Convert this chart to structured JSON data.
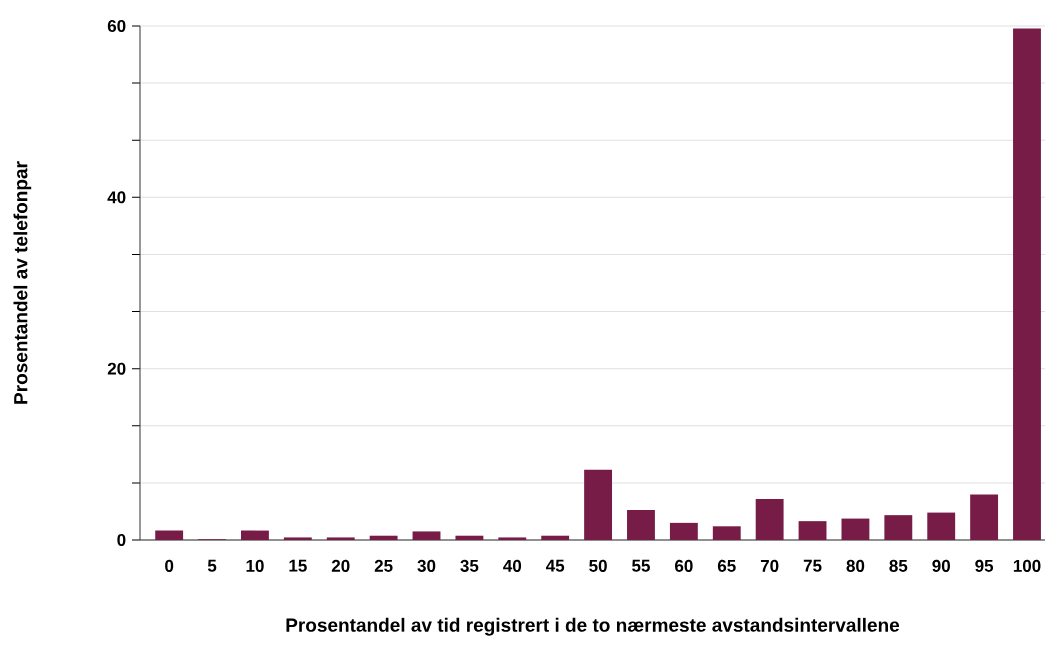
{
  "chart_data": {
    "type": "bar",
    "xlabel": "Prosentandel av tid registrert i de to nærmeste avstandsintervallene",
    "ylabel": "Prosentandel av telefonpar",
    "categories": [
      "0",
      "5",
      "10",
      "15",
      "20",
      "25",
      "30",
      "35",
      "40",
      "45",
      "50",
      "55",
      "60",
      "65",
      "70",
      "75",
      "80",
      "85",
      "90",
      "95",
      "100"
    ],
    "values": [
      1.1,
      0.1,
      1.1,
      0.3,
      0.3,
      0.5,
      1.0,
      0.5,
      0.3,
      0.5,
      8.2,
      3.5,
      2.0,
      1.6,
      4.8,
      2.2,
      2.5,
      2.9,
      3.2,
      5.3,
      59.7
    ],
    "color": "#761c47",
    "ylim": [
      0,
      60
    ],
    "yticks": [
      0,
      {
        "value": 6.667,
        "label": null
      },
      {
        "value": 13.333,
        "label": null
      },
      20,
      {
        "value": 26.667,
        "label": null
      },
      {
        "value": 33.333,
        "label": null
      },
      40,
      {
        "value": 46.667,
        "label": null
      },
      {
        "value": 53.333,
        "label": null
      },
      60
    ],
    "grid": "y"
  }
}
